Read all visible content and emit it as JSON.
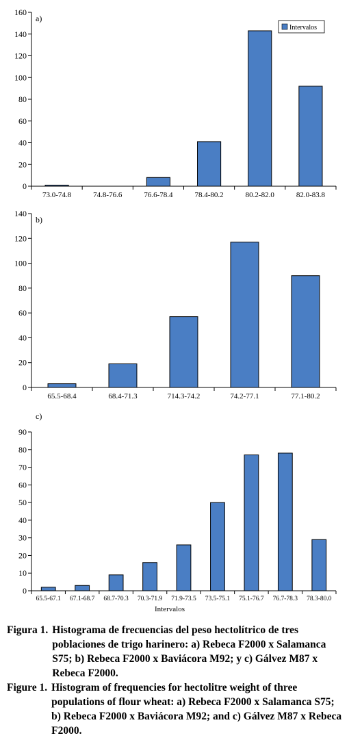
{
  "chart_data": [
    {
      "type": "bar",
      "panel": "a)",
      "categories": [
        "73.0-74.8",
        "74.8-76.6",
        "76.6-78.4",
        "78.4-80.2",
        "80.2-82.0",
        "82.0-83.8"
      ],
      "values": [
        1,
        0,
        8,
        41,
        143,
        92
      ],
      "yticks": [
        0,
        20,
        40,
        60,
        80,
        100,
        120,
        140,
        160
      ],
      "ylim": [
        0,
        160
      ],
      "legend": "Intervalos",
      "legend_position": "top-right",
      "xlabel": "",
      "grid": false,
      "color": "#4a7ec4"
    },
    {
      "type": "bar",
      "panel": "b)",
      "categories": [
        "65.5-68.4",
        "68.4-71.3",
        "714.3-74.2",
        "74.2-77.1",
        "77.1-80.2"
      ],
      "values": [
        3,
        19,
        57,
        117,
        90
      ],
      "yticks": [
        0,
        20,
        40,
        60,
        80,
        100,
        120,
        140
      ],
      "ylim": [
        0,
        140
      ],
      "legend": "",
      "xlabel": "",
      "grid": false,
      "color": "#4a7ec4"
    },
    {
      "type": "bar",
      "panel": "c)",
      "categories": [
        "65.5-67.1",
        "67.1-68.7",
        "68.7-70.3",
        "70.3-71.9",
        "71.9-73.5",
        "73.5-75.1",
        "75.1-76.7",
        "76.7-78.3",
        "78.3-80.0"
      ],
      "values": [
        2,
        3,
        9,
        16,
        26,
        50,
        77,
        78,
        29
      ],
      "yticks": [
        0,
        10,
        20,
        30,
        40,
        50,
        60,
        70,
        80,
        90
      ],
      "ylim": [
        0,
        90
      ],
      "legend": "",
      "xlabel": "Intervalos",
      "grid": false,
      "color": "#4a7ec4"
    }
  ],
  "caption": {
    "es_label": "Figura 1.",
    "es_text": "Histograma de frecuencias del peso hectolítrico de tres poblaciones de trigo harinero: a) Rebeca F2000 x Salamanca S75; b) Rebeca F2000 x Baviácora M92; y c) Gálvez M87 x Rebeca F2000.",
    "en_label": "Figure 1.",
    "en_text": "Histogram of frequencies for hectolitre weight of three populations of flour wheat: a) Rebeca F2000 x Salamanca S75; b) Rebeca F2000 x Baviácora M92; and c) Gálvez M87 x Rebeca F2000."
  }
}
